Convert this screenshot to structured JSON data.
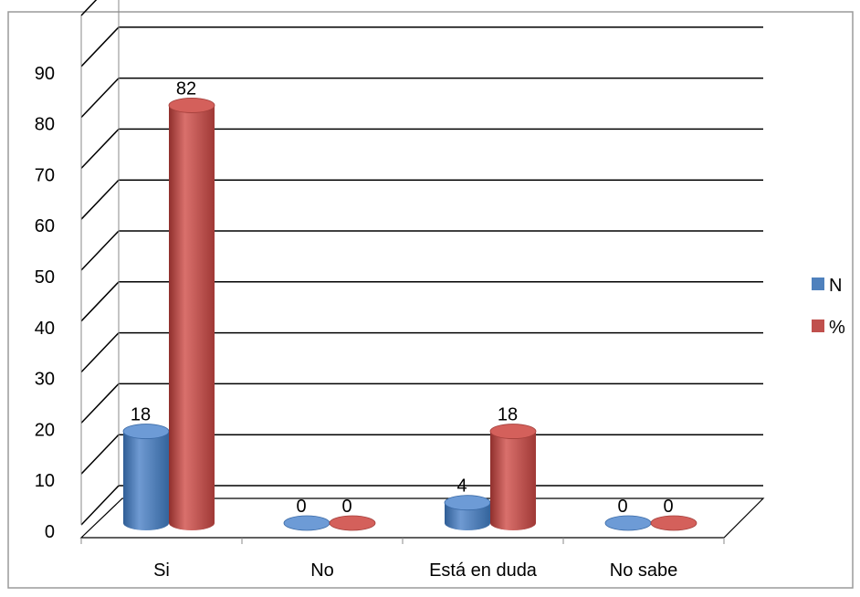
{
  "chart_data": {
    "type": "bar",
    "style": "3d-cylinder",
    "categories": [
      "Si",
      "No",
      "Está en duda",
      "No sabe"
    ],
    "series": [
      {
        "name": "N",
        "values": [
          18,
          0,
          4,
          0
        ],
        "color": "#4F81BD"
      },
      {
        "name": "%",
        "values": [
          82,
          0,
          18,
          0
        ],
        "color": "#C0504D"
      }
    ],
    "data_labels": [
      [
        "18",
        "0",
        "4",
        "0"
      ],
      [
        "82",
        "0",
        "18",
        "0"
      ]
    ],
    "y_ticks": [
      "0",
      "10",
      "20",
      "30",
      "40",
      "50",
      "60",
      "70",
      "80",
      "90"
    ],
    "ylim": [
      0,
      100
    ],
    "grid": true,
    "legend_position": "right"
  }
}
